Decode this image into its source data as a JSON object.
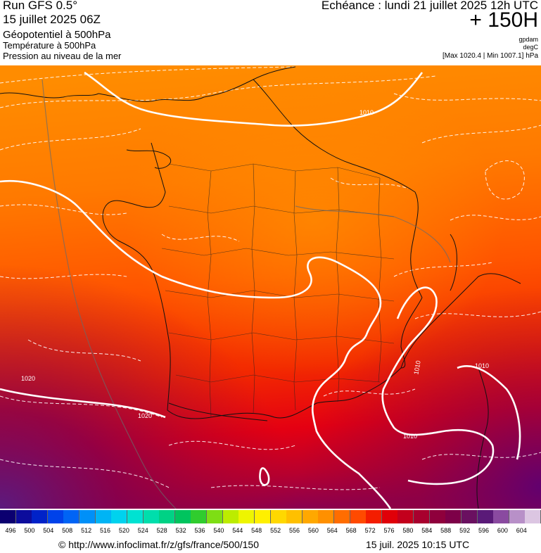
{
  "header": {
    "run": "Run GFS 0.5°",
    "date": "15 juillet 2025 06Z",
    "field1": "Géopotentiel à 500hPa",
    "field2": "Température à 500hPa",
    "field3": "Pression au niveau de la mer",
    "echeance": "Echéance : lundi 21 juillet 2025 12h UTC",
    "horizon": "+ 150H",
    "unit1": "gpdam",
    "unit2": "degC",
    "minmax": "[Max 1020.4 | Min 1007.1] hPa"
  },
  "map": {
    "isobar_labels": [
      "1010",
      "1020",
      "1020",
      "1010",
      "1010",
      "1010"
    ]
  },
  "scale": {
    "labels": [
      "496",
      "500",
      "504",
      "508",
      "512",
      "516",
      "520",
      "524",
      "528",
      "532",
      "536",
      "540",
      "544",
      "548",
      "552",
      "556",
      "560",
      "564",
      "568",
      "572",
      "576",
      "580",
      "584",
      "588",
      "592",
      "596",
      "600",
      "604"
    ],
    "colors": [
      "#0b0070",
      "#0c0c9c",
      "#0022c8",
      "#0042ea",
      "#0064f5",
      "#0090f8",
      "#00b4f5",
      "#00d2ee",
      "#00e2d2",
      "#00deac",
      "#00d285",
      "#00c45e",
      "#30cc2e",
      "#7ede14",
      "#bcec00",
      "#eef500",
      "#fff000",
      "#ffd800",
      "#ffc000",
      "#ffa800",
      "#ff9000",
      "#ff6d00",
      "#ff4a00",
      "#f41d00",
      "#e00008",
      "#c3001c",
      "#a8002e",
      "#8f003c",
      "#7d0048",
      "#6a1060",
      "#5a1a78",
      "#8a4aa0",
      "#b890c8",
      "#dcc6e2"
    ]
  },
  "footer": {
    "url": "© http://www.infoclimat.fr/z/gfs/france/500/150",
    "timestamp": "15 juil. 2025 10:15 UTC"
  }
}
